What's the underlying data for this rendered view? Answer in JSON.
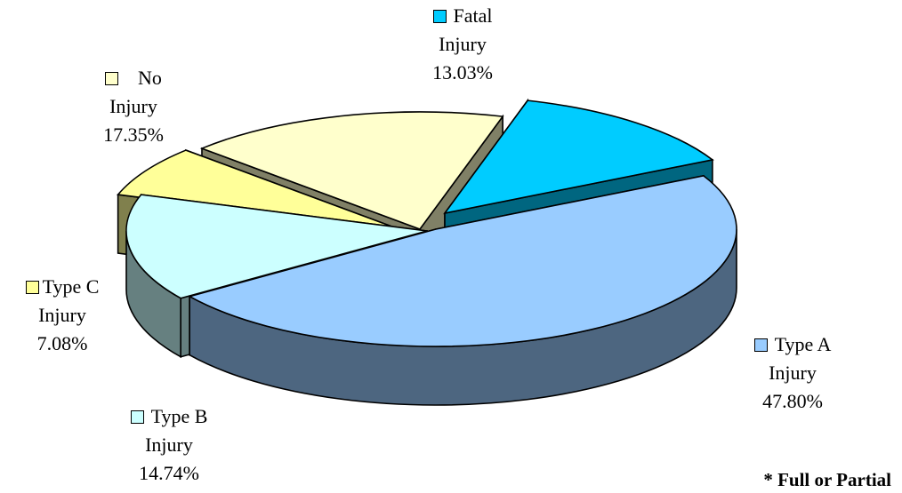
{
  "chart_data": {
    "type": "pie",
    "slices": [
      {
        "label_line1": "Fatal",
        "label_line2": "Injury",
        "percent_text": "13.03%",
        "value": 13.03,
        "color": "#00ccff",
        "side_color": "#006680"
      },
      {
        "label_line1": "Type A",
        "label_line2": "Injury",
        "percent_text": "47.80%",
        "value": 47.8,
        "color": "#99ccff",
        "side_color": "#4d6680"
      },
      {
        "label_line1": "Type B",
        "label_line2": "Injury",
        "percent_text": "14.74%",
        "value": 14.74,
        "color": "#ccffff",
        "side_color": "#668080"
      },
      {
        "label_line1": "Type C",
        "label_line2": "Injury",
        "percent_text": "7.08%",
        "value": 7.08,
        "color": "#ffff99",
        "side_color": "#80804d"
      },
      {
        "label_line1": "No",
        "label_line2": "Injury",
        "percent_text": "17.35%",
        "value": 17.35,
        "color": "#ffffcc",
        "side_color": "#808066"
      }
    ],
    "style": "3d-exploded",
    "footnote": "* Full or Partial"
  }
}
